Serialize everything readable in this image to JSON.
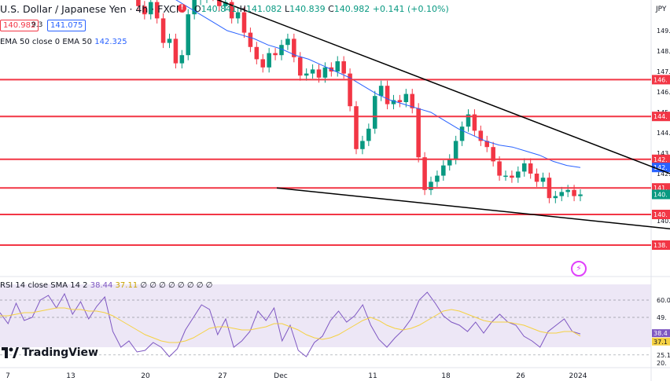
{
  "header": {
    "title": "U.S. Dollar / Japanese Yen · 4h · FXCM",
    "ohlc": {
      "open_label": "O",
      "open": "140.841",
      "high_label": "H",
      "high": "141.082",
      "low_label": "L",
      "low": "140.839",
      "close_label": "C",
      "close": "140.982",
      "change": "+0.141 (+0.10%)"
    },
    "bid": "140.982",
    "spread": "9.3",
    "ask": "141.075"
  },
  "ema_legend": {
    "text": "EMA 50 close 0 EMA 50",
    "value": "142.325"
  },
  "rsi_legend": {
    "text": "RSI 14 close SMA 14 2",
    "rsi_value": "38.44",
    "sma_value": "37.11",
    "rest": "∅ ∅ ∅ ∅ ∅ ∅ ∅ ∅"
  },
  "currency_label": "JPY",
  "branding": "TradingView",
  "colors": {
    "up": "#089981",
    "down": "#f23645",
    "ema": "#2962ff",
    "resistance": "#f23645",
    "trend": "#000000",
    "rsi": "#7e57c2",
    "rsi_sma": "#f5d142",
    "rsi_band": "#ede7f6"
  },
  "chart_data": [
    {
      "type": "candlestick",
      "title": "U.S. Dollar / Japanese Yen",
      "ylim": [
        137.5,
        150.5
      ],
      "y_ticks": [
        "149.",
        "148.",
        "147.",
        "146.",
        "145.",
        "144.",
        "143.",
        "142.",
        "141.",
        "140.",
        "140."
      ],
      "x_ticks": [
        "7",
        "13",
        "20",
        "27",
        "Dec",
        "11",
        "18",
        "26",
        "2024"
      ],
      "price_levels": [
        {
          "label": "146.",
          "value": 146.6
        },
        {
          "label": "144.",
          "value": 144.8
        },
        {
          "label": "142.",
          "value": 142.7
        },
        {
          "label": "141.",
          "value": 141.3
        },
        {
          "label": "140.",
          "value": 140.0
        },
        {
          "label": "138.",
          "value": 138.5
        }
      ],
      "price_tags": [
        {
          "label": "142.",
          "value": 142.3,
          "color": "#2962ff"
        },
        {
          "label": "140.",
          "value": 140.98,
          "color": "#089981"
        }
      ],
      "trendlines": [
        {
          "name": "upper",
          "from": [
            230,
            151.2
          ],
          "to": [
            852,
            142.0
          ]
        },
        {
          "name": "lower",
          "from": [
            352,
            141.3
          ],
          "to": [
            852,
            139.3
          ]
        }
      ],
      "ohlc_path": [
        151.0,
        150.2,
        149.8,
        150.4,
        149.6,
        148.4,
        148.6,
        147.4,
        147.8,
        149.8,
        150.5,
        150.6,
        151.0,
        150.7,
        150.2,
        150.4,
        149.6,
        149.9,
        148.9,
        148.2,
        147.6,
        147.2,
        147.9,
        147.8,
        148.3,
        148.6,
        147.7,
        146.8,
        146.9,
        147.1,
        146.7,
        147.2,
        147.0,
        147.5,
        146.9,
        145.3,
        143.2,
        143.6,
        144.2,
        145.8,
        146.3,
        145.4,
        145.6,
        145.5,
        145.9,
        145.2,
        142.8,
        141.2,
        141.6,
        141.9,
        142.4,
        142.7,
        143.6,
        144.3,
        144.9,
        144.1,
        143.6,
        143.3,
        142.6,
        141.9,
        141.9,
        141.8,
        142.1,
        142.5,
        142.0,
        141.6,
        141.8,
        140.8,
        140.9,
        141.1,
        141.2,
        140.9,
        140.98
      ],
      "ema50_path": [
        151.4,
        151.2,
        150.9,
        150.6,
        150.2,
        149.8,
        149.4,
        149.0,
        148.8,
        148.6,
        148.3,
        148.1,
        147.8,
        147.6,
        147.3,
        147.0,
        146.7,
        146.3,
        145.9,
        145.6,
        145.4,
        145.2,
        145.0,
        144.6,
        144.2,
        143.9,
        143.6,
        143.4,
        143.3,
        143.1,
        142.9,
        142.6,
        142.4,
        142.3
      ]
    },
    {
      "type": "line",
      "title": "RSI 14",
      "ylim": [
        20,
        70
      ],
      "y_ticks": [
        "60.0",
        "49.",
        "38.4",
        "37.1",
        "25.1",
        "20."
      ],
      "band": [
        30,
        70
      ],
      "series": [
        {
          "name": "RSI",
          "values": [
            52,
            45,
            58,
            47,
            49,
            60,
            63,
            55,
            64,
            51,
            59,
            48,
            56,
            62,
            40,
            30,
            34,
            27,
            28,
            33,
            30,
            24,
            29,
            41,
            49,
            57,
            54,
            38,
            48,
            30,
            34,
            40,
            53,
            47,
            55,
            34,
            44,
            28,
            24,
            33,
            37,
            47,
            53,
            46,
            50,
            57,
            44,
            35,
            30,
            36,
            41,
            48,
            60,
            65,
            58,
            50,
            46,
            44,
            40,
            46,
            39,
            46,
            51,
            46,
            44,
            37,
            34,
            30,
            40,
            44,
            48,
            40,
            38.44
          ]
        },
        {
          "name": "SMA",
          "values": [
            50,
            50,
            51,
            52,
            52,
            53,
            54,
            55,
            55,
            54,
            54,
            53,
            53,
            52,
            50,
            47,
            44,
            41,
            38,
            36,
            34,
            33,
            33,
            34,
            36,
            39,
            42,
            43,
            43,
            42,
            41,
            41,
            42,
            43,
            45,
            45,
            43,
            41,
            38,
            36,
            35,
            36,
            38,
            41,
            44,
            47,
            49,
            47,
            44,
            42,
            41,
            42,
            44,
            47,
            50,
            53,
            54,
            53,
            51,
            49,
            47,
            46,
            46,
            46,
            45,
            44,
            42,
            40,
            39,
            39,
            40,
            40,
            37.11
          ]
        }
      ]
    }
  ]
}
